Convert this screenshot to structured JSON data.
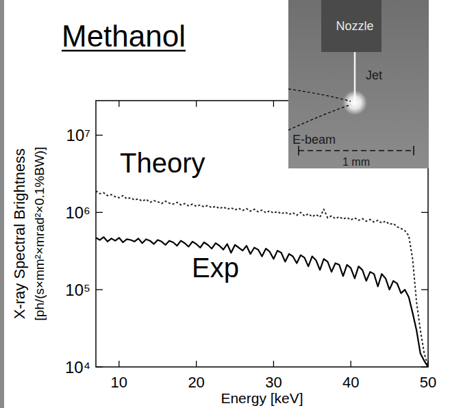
{
  "chart_data": {
    "type": "line",
    "title": "Methanol",
    "x_label": "Energy [keV]",
    "y_label": [
      "X-ray Spectral Brightness",
      "[ph/(s×mm²×mrad²×0.1%BW)]"
    ],
    "log": "y",
    "xlim": [
      7,
      50
    ],
    "ylim": [
      10000,
      28000000
    ],
    "xticks": [
      10,
      20,
      30,
      40,
      50
    ],
    "yticks": [
      {
        "value": 10000,
        "label": "10⁴"
      },
      {
        "value": 100000,
        "label": "10⁵"
      },
      {
        "value": 1000000,
        "label": "10⁶"
      },
      {
        "value": 10000000,
        "label": "10⁷"
      }
    ],
    "x": [
      7,
      7.5,
      8,
      8.5,
      9,
      9.5,
      10,
      10.5,
      11,
      11.5,
      12,
      12.5,
      13,
      13.5,
      14,
      14.5,
      15,
      15.5,
      16,
      16.5,
      17,
      17.5,
      18,
      18.5,
      19,
      19.5,
      20,
      20.5,
      21,
      21.5,
      22,
      22.5,
      23,
      23.5,
      24,
      24.5,
      25,
      25.5,
      26,
      26.5,
      27,
      27.5,
      28,
      28.5,
      29,
      29.5,
      30,
      30.5,
      31,
      31.5,
      32,
      32.5,
      33,
      33.5,
      34,
      34.5,
      35,
      35.5,
      36,
      36.5,
      37,
      37.5,
      38,
      38.5,
      39,
      39.5,
      40,
      40.5,
      41,
      41.5,
      42,
      42.5,
      43,
      43.5,
      44,
      44.5,
      45,
      45.5,
      46,
      46.5,
      47,
      47.5,
      48,
      48.5,
      49,
      49.5,
      50
    ],
    "series": [
      {
        "name": "Theory",
        "color": "#222222",
        "line_style": "dashed",
        "values": [
          1900000,
          1750000,
          1800000,
          1650000,
          1700000,
          1600000,
          1550000,
          1650000,
          1500000,
          1550000,
          1450000,
          1500000,
          1400000,
          1480000,
          1350000,
          1420000,
          1380000,
          1300000,
          1400000,
          1320000,
          1280000,
          1350000,
          1250000,
          1300000,
          1220000,
          1280000,
          1200000,
          1250000,
          1180000,
          1230000,
          1150000,
          1200000,
          1120000,
          1180000,
          1100000,
          1150000,
          1080000,
          1130000,
          1060000,
          1120000,
          1040000,
          1100000,
          1020000,
          1070000,
          990000,
          1050000,
          980000,
          1030000,
          960000,
          1010000,
          940000,
          990000,
          920000,
          1000000,
          900000,
          960000,
          880000,
          940000,
          870000,
          1100000,
          850000,
          900000,
          830000,
          880000,
          820000,
          860000,
          800000,
          850000,
          790000,
          830000,
          770000,
          810000,
          750000,
          790000,
          730000,
          770000,
          700000,
          720000,
          650000,
          620000,
          580000,
          500000,
          250000,
          70000,
          30000,
          15000,
          10000
        ]
      },
      {
        "name": "Exp",
        "color": "#000000",
        "line_style": "solid",
        "values": [
          470000,
          440000,
          480000,
          420000,
          460000,
          430000,
          470000,
          410000,
          450000,
          440000,
          420000,
          460000,
          400000,
          450000,
          430000,
          390000,
          440000,
          420000,
          380000,
          430000,
          410000,
          370000,
          430000,
          400000,
          360000,
          420000,
          390000,
          350000,
          410000,
          380000,
          340000,
          400000,
          370000,
          330000,
          390000,
          300000,
          380000,
          350000,
          320000,
          370000,
          290000,
          350000,
          330000,
          270000,
          340000,
          310000,
          250000,
          320000,
          300000,
          230000,
          290000,
          270000,
          220000,
          280000,
          260000,
          200000,
          270000,
          240000,
          180000,
          250000,
          230000,
          170000,
          220000,
          210000,
          150000,
          210000,
          190000,
          140000,
          200000,
          180000,
          130000,
          170000,
          160000,
          110000,
          160000,
          140000,
          100000,
          130000,
          120000,
          90000,
          100000,
          80000,
          50000,
          30000,
          15000,
          12000,
          10000
        ]
      }
    ],
    "inset": {
      "labels": [
        "Nozzle",
        "Jet",
        "E-beam"
      ],
      "scale_bar": "1 mm"
    }
  }
}
